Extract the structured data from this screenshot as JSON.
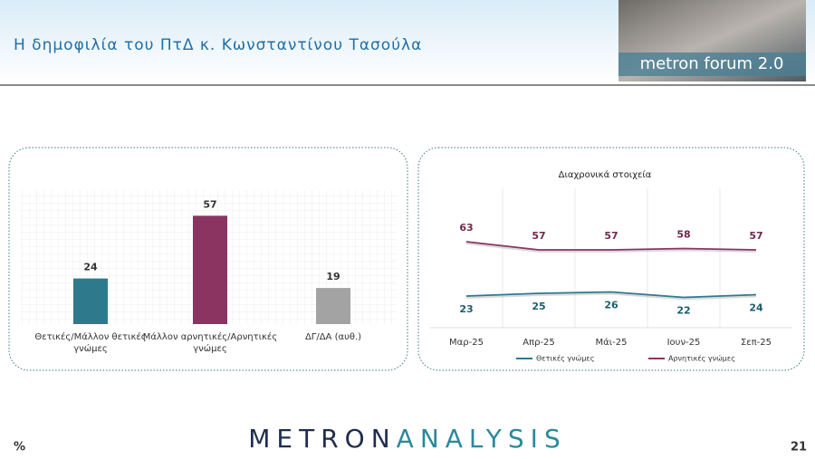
{
  "header": {
    "title": "Η δημοφιλία του ΠτΔ κ. Κωνσταντίνου Τασούλα",
    "logo": "metron forum 2.0"
  },
  "chart_data": [
    {
      "type": "bar",
      "categories": [
        "Θετικές/Μάλλον θετικές γνώμες",
        "Μάλλον αρνητικές/Αρνητικές γνώμες",
        "ΔΓ/ΔΑ (αυθ.)"
      ],
      "values": [
        24,
        57,
        19
      ],
      "colors": [
        "#2e7a8c",
        "#8b3462",
        "#a3a3a3"
      ]
    },
    {
      "type": "line",
      "title": "Διαχρονικά στοιχεία",
      "categories": [
        "Μαρ-25",
        "Απρ-25",
        "Μάι-25",
        "Ιουν-25",
        "Σεπ-25"
      ],
      "series": [
        {
          "name": "Θετικές γνώμες",
          "color": "#2e7a8c",
          "values": [
            23,
            25,
            26,
            22,
            24
          ]
        },
        {
          "name": "Αρνητικές γνώμες",
          "color": "#8b3462",
          "values": [
            63,
            57,
            57,
            58,
            57
          ]
        }
      ]
    }
  ],
  "footer": {
    "unit": "%",
    "brand": [
      "METRON",
      "ANALYSIS"
    ],
    "page": 21
  }
}
